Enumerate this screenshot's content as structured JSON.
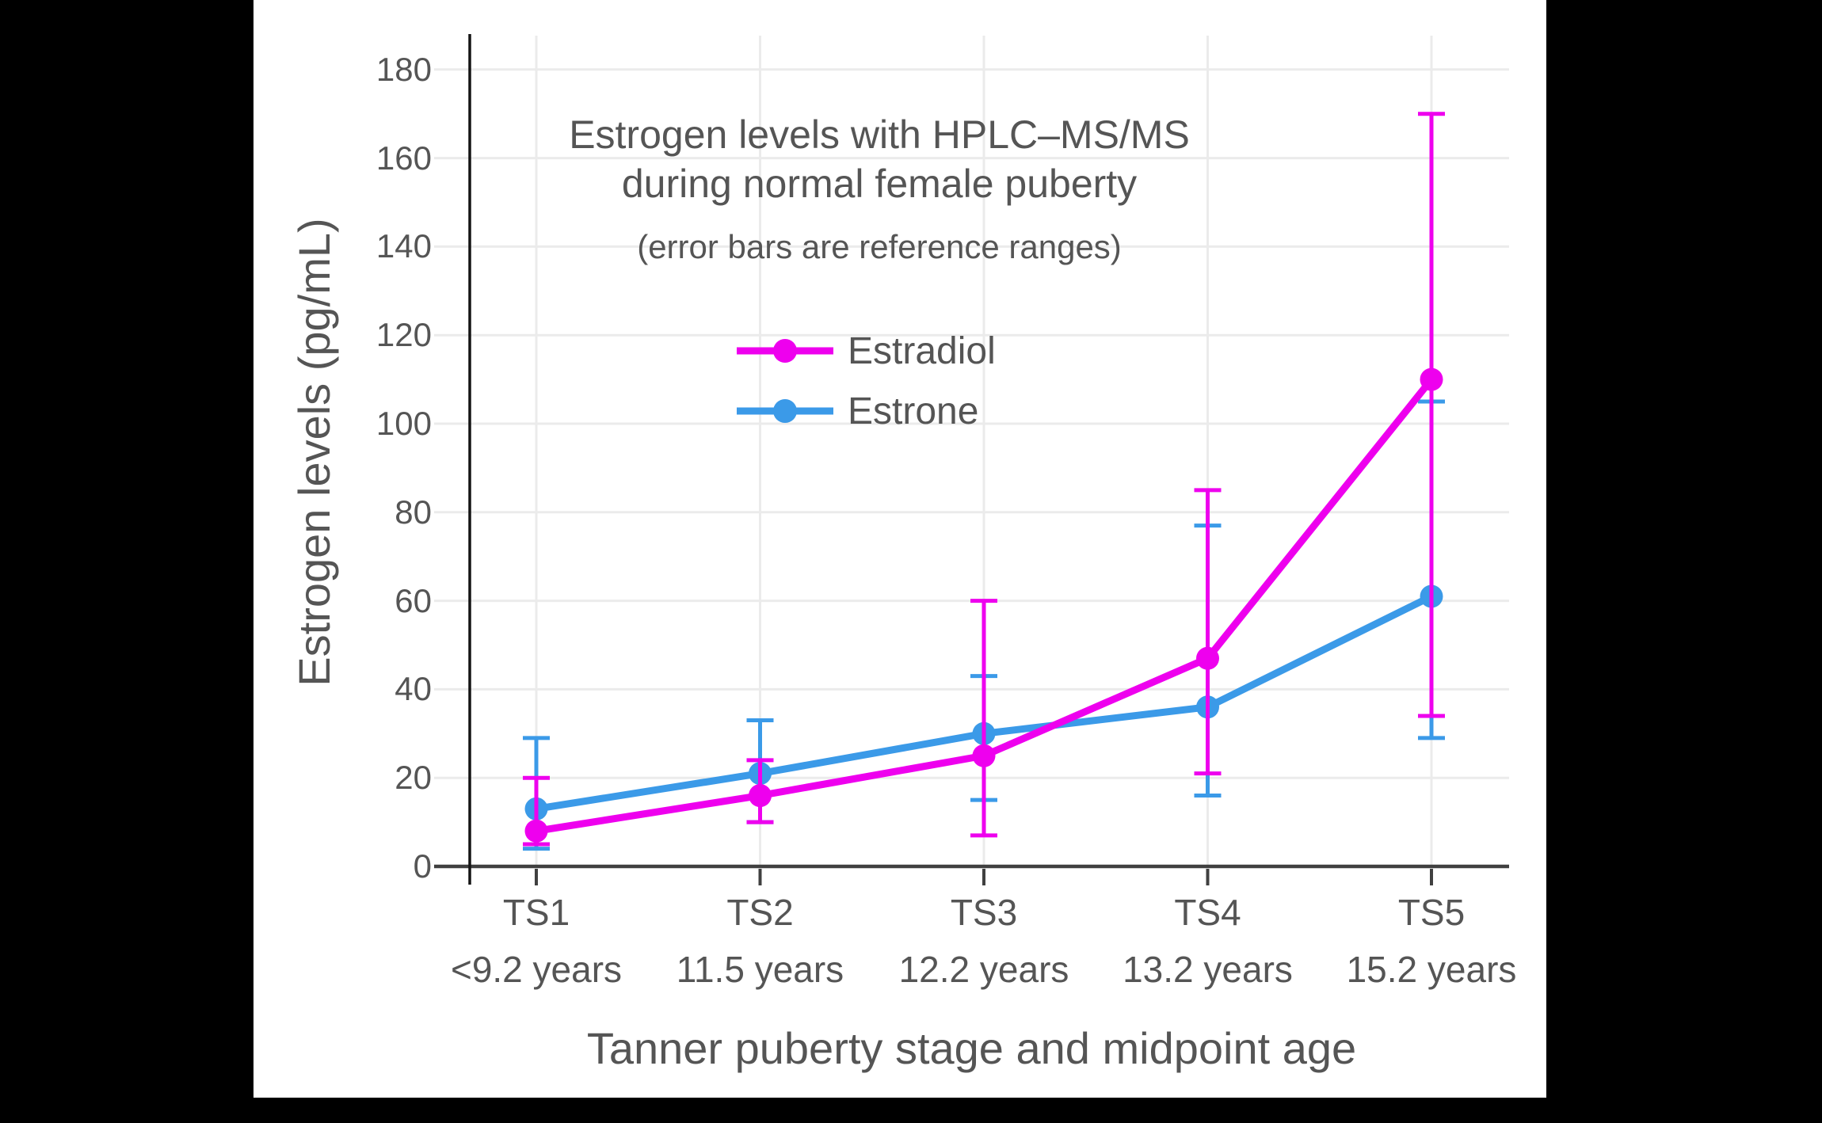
{
  "window": {
    "background": "#000000",
    "canvas_background": "#FFFFFF"
  },
  "chart_data": {
    "type": "line",
    "title_line1": "Estrogen levels with HPLC–MS/MS",
    "title_line2": "during normal female puberty",
    "subtitle": "(error bars are reference ranges)",
    "xlabel": "Tanner puberty stage and midpoint age",
    "ylabel": "Estrogen levels (pg/mL)",
    "categories": [
      "TS1",
      "TS2",
      "TS3",
      "TS4",
      "TS5"
    ],
    "category_ages": [
      "<9.2 years",
      "11.5 years",
      "12.2 years",
      "13.2 years",
      "15.2 years"
    ],
    "y_ticks": [
      0,
      20,
      40,
      60,
      80,
      100,
      120,
      140,
      160,
      180
    ],
    "ylim": [
      0,
      188
    ],
    "grid": true,
    "legend_position": "inside upper-left of plot",
    "error_bars": "reference ranges",
    "series": [
      {
        "name": "Estradiol",
        "color": "#EE00EE",
        "values": [
          8,
          16,
          25,
          47,
          110
        ],
        "error_low": [
          5,
          10,
          7,
          21,
          34
        ],
        "error_high": [
          20,
          24,
          60,
          85,
          170
        ]
      },
      {
        "name": "Estrone",
        "color": "#3B9AE8",
        "values": [
          13,
          21,
          30,
          36,
          61
        ],
        "error_low": [
          4,
          10,
          15,
          16,
          29
        ],
        "error_high": [
          29,
          33,
          43,
          77,
          105
        ]
      }
    ],
    "colors": {
      "grid": "#EBEBEB",
      "x_axis": "#404040",
      "y_axis": "#141414",
      "text": "#555555"
    }
  }
}
